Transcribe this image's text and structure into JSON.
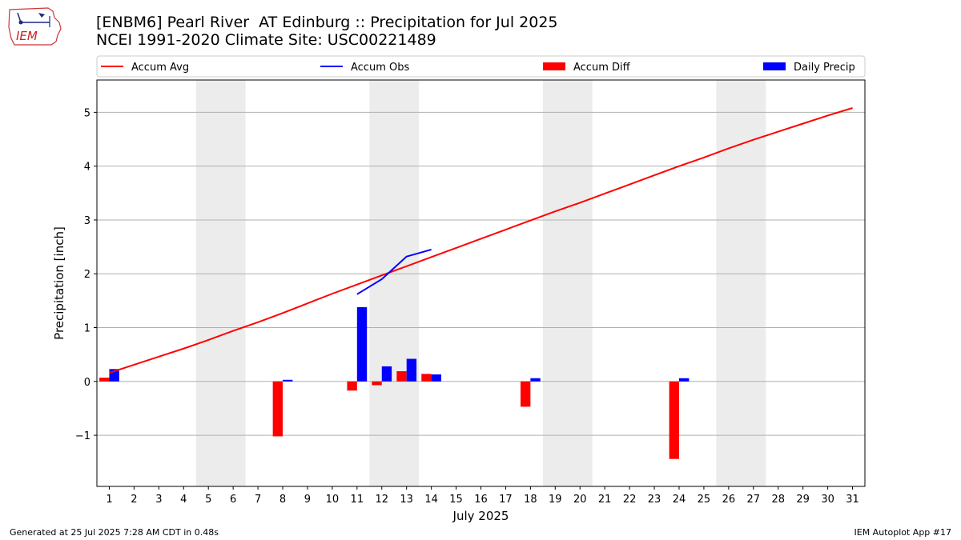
{
  "header": {
    "title_line1": "[ENBM6] Pearl River  AT Edinburg :: Precipitation for Jul 2025",
    "title_line2": "NCEI 1991-2020 Climate Site: USC00221489",
    "logo_text": "IEM"
  },
  "footer": {
    "generated": "Generated at 25 Jul 2025 7:28 AM CDT in 0.48s",
    "app": "IEM Autoplot App #17"
  },
  "colors": {
    "accum_avg": "#ff0000",
    "accum_obs": "#0000ff",
    "accum_diff": "#ff0000",
    "daily_precip": "#0000ff",
    "weekend_shade": "#ececec"
  },
  "chart_data": {
    "type": "bar",
    "xlabel": "July 2025",
    "ylabel": "Precipitation [inch]",
    "xlim": [
      0.5,
      31.5
    ],
    "ylim": [
      -1.95,
      5.6
    ],
    "yticks": [
      -1,
      0,
      1,
      2,
      3,
      4,
      5
    ],
    "ytick_labels": [
      "−1",
      "0",
      "1",
      "2",
      "3",
      "4",
      "5"
    ],
    "xticks": [
      1,
      2,
      3,
      4,
      5,
      6,
      7,
      8,
      9,
      10,
      11,
      12,
      13,
      14,
      15,
      16,
      17,
      18,
      19,
      20,
      21,
      22,
      23,
      24,
      25,
      26,
      27,
      28,
      29,
      30,
      31
    ],
    "grid": "y",
    "legend": {
      "placement": "top",
      "entries": [
        {
          "label": "Accum Avg",
          "kind": "line",
          "color": "#ff0000"
        },
        {
          "label": "Accum Obs",
          "kind": "line",
          "color": "#0000ff"
        },
        {
          "label": "Accum Diff",
          "kind": "bar",
          "color": "#ff0000"
        },
        {
          "label": "Daily Precip",
          "kind": "bar",
          "color": "#0000ff"
        }
      ]
    },
    "weekend_days": [
      5,
      6,
      12,
      13,
      19,
      20,
      26,
      27
    ],
    "accum_avg": {
      "name": "Accum Avg",
      "x": [
        1,
        2,
        3,
        4,
        5,
        6,
        7,
        8,
        9,
        10,
        11,
        12,
        13,
        14,
        15,
        16,
        17,
        18,
        19,
        20,
        21,
        22,
        23,
        24,
        25,
        26,
        27,
        28,
        29,
        30,
        31
      ],
      "y": [
        0.16,
        0.31,
        0.46,
        0.61,
        0.77,
        0.94,
        1.1,
        1.27,
        1.45,
        1.63,
        1.8,
        1.97,
        2.14,
        2.31,
        2.48,
        2.65,
        2.82,
        2.99,
        3.16,
        3.32,
        3.49,
        3.66,
        3.83,
        4.0,
        4.16,
        4.33,
        4.49,
        4.64,
        4.79,
        4.94,
        5.08
      ]
    },
    "accum_obs": {
      "name": "Accum Obs",
      "x": [
        11,
        12,
        13,
        14
      ],
      "y": [
        1.62,
        1.9,
        2.32,
        2.45
      ]
    },
    "accum_diff": {
      "name": "Accum Diff",
      "x": [
        1,
        8,
        11,
        12,
        13,
        14,
        18,
        24
      ],
      "y": [
        0.07,
        -1.02,
        -0.17,
        -0.07,
        0.19,
        0.14,
        -0.47,
        -1.44
      ]
    },
    "daily_precip": {
      "name": "Daily Precip",
      "x": [
        1,
        8,
        11,
        12,
        13,
        14,
        18,
        24
      ],
      "y": [
        0.23,
        0.03,
        1.38,
        0.28,
        0.42,
        0.13,
        0.06,
        0.06
      ]
    }
  }
}
